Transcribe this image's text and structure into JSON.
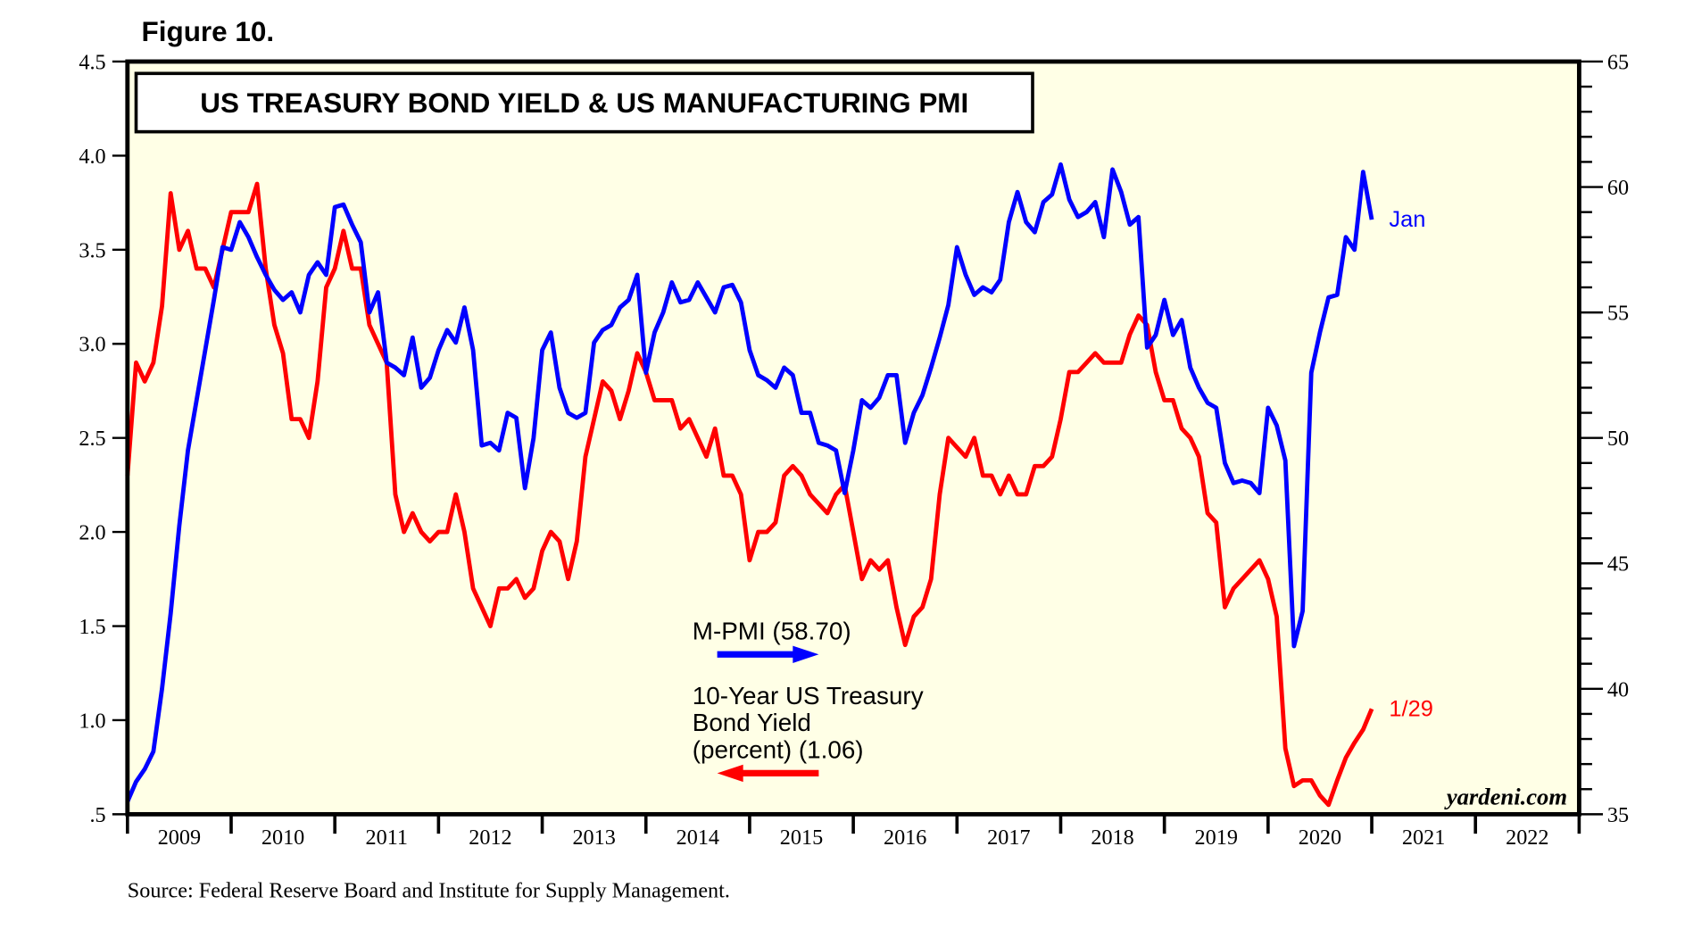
{
  "figure_label": "Figure 10.",
  "source": "Source: Federal Reserve Board and Institute for Supply Management.",
  "watermark": "yardeni.com",
  "colors": {
    "pmi": "#0000FF",
    "yield": "#FF0000",
    "plot_bg": "#FFFFE6"
  },
  "chart_data": {
    "type": "line",
    "title": "US TREASURY BOND YIELD & US MANUFACTURING PMI",
    "x_tick_labels": [
      "2009",
      "2010",
      "2011",
      "2012",
      "2013",
      "2014",
      "2015",
      "2016",
      "2017",
      "2018",
      "2019",
      "2020",
      "2021",
      "2022"
    ],
    "xlim": [
      "2009-01",
      "2022-12"
    ],
    "y_left": {
      "ylim": [
        0.5,
        4.5
      ],
      "tick_labels": [
        ".5",
        "1.0",
        "1.5",
        "2.0",
        "2.5",
        "3.0",
        "3.5",
        "4.0",
        "4.5"
      ]
    },
    "y_right": {
      "ylim": [
        35,
        65
      ],
      "tick_labels": [
        "35",
        "40",
        "45",
        "50",
        "55",
        "60",
        "65"
      ]
    },
    "grid": false,
    "legend_placement": "center-bottom",
    "series": [
      {
        "name": "M-PMI (58.70)",
        "axis": "right",
        "end_label": "Jan",
        "start": "2009-01",
        "frequency": "monthly",
        "values": [
          35.5,
          36.3,
          36.8,
          37.5,
          40.0,
          43.0,
          46.5,
          49.5,
          51.5,
          53.5,
          55.5,
          57.6,
          57.5,
          58.6,
          58.0,
          57.2,
          56.5,
          55.9,
          55.5,
          55.8,
          55.0,
          56.5,
          57.0,
          56.5,
          59.2,
          59.3,
          58.5,
          57.8,
          55.0,
          55.8,
          53.0,
          52.8,
          52.5,
          54.0,
          52.0,
          52.4,
          53.5,
          54.3,
          53.8,
          55.2,
          53.5,
          49.7,
          49.8,
          49.5,
          51.0,
          50.8,
          48.0,
          50.0,
          53.5,
          54.2,
          52.0,
          51.0,
          50.8,
          51.0,
          53.8,
          54.3,
          54.5,
          55.2,
          55.5,
          56.5,
          52.6,
          54.2,
          55.0,
          56.2,
          55.4,
          55.5,
          56.2,
          55.6,
          55.0,
          56.0,
          56.1,
          55.4,
          53.5,
          52.5,
          52.3,
          52.0,
          52.8,
          52.5,
          51.0,
          51.0,
          49.8,
          49.7,
          49.5,
          47.8,
          49.5,
          51.5,
          51.2,
          51.6,
          52.5,
          52.5,
          49.8,
          51.0,
          51.7,
          52.8,
          54.0,
          55.3,
          57.6,
          56.5,
          55.7,
          56.0,
          55.8,
          56.3,
          58.6,
          59.8,
          58.6,
          58.2,
          59.4,
          59.7,
          60.9,
          59.5,
          58.8,
          59.0,
          59.4,
          58.0,
          60.7,
          59.8,
          58.5,
          58.8,
          53.6,
          54.1,
          55.5,
          54.1,
          54.7,
          52.8,
          52.0,
          51.4,
          51.2,
          49.0,
          48.2,
          48.3,
          48.2,
          47.8,
          51.2,
          50.5,
          49.1,
          41.7,
          43.1,
          52.6,
          54.2,
          55.6,
          55.7,
          58.0,
          57.5,
          60.6,
          58.7
        ]
      },
      {
        "name": "10-Year US Treasury Bond Yield (percent) (1.06)",
        "axis": "left",
        "end_label": "1/29",
        "start": "2009-01",
        "frequency": "monthly",
        "values": [
          2.3,
          2.9,
          2.8,
          2.9,
          3.2,
          3.8,
          3.5,
          3.6,
          3.4,
          3.4,
          3.3,
          3.5,
          3.7,
          3.7,
          3.7,
          3.85,
          3.4,
          3.1,
          2.95,
          2.6,
          2.6,
          2.5,
          2.8,
          3.3,
          3.4,
          3.6,
          3.4,
          3.4,
          3.1,
          3.0,
          2.9,
          2.2,
          2.0,
          2.1,
          2.0,
          1.95,
          2.0,
          2.0,
          2.2,
          2.0,
          1.7,
          1.6,
          1.5,
          1.7,
          1.7,
          1.75,
          1.65,
          1.7,
          1.9,
          2.0,
          1.95,
          1.75,
          1.95,
          2.4,
          2.6,
          2.8,
          2.75,
          2.6,
          2.75,
          2.95,
          2.85,
          2.7,
          2.7,
          2.7,
          2.55,
          2.6,
          2.5,
          2.4,
          2.55,
          2.3,
          2.3,
          2.2,
          1.85,
          2.0,
          2.0,
          2.05,
          2.3,
          2.35,
          2.3,
          2.2,
          2.15,
          2.1,
          2.2,
          2.25,
          2.0,
          1.75,
          1.85,
          1.8,
          1.85,
          1.6,
          1.4,
          1.55,
          1.6,
          1.75,
          2.2,
          2.5,
          2.45,
          2.4,
          2.5,
          2.3,
          2.3,
          2.2,
          2.3,
          2.2,
          2.2,
          2.35,
          2.35,
          2.4,
          2.6,
          2.85,
          2.85,
          2.9,
          2.95,
          2.9,
          2.9,
          2.9,
          3.05,
          3.15,
          3.1,
          2.85,
          2.7,
          2.7,
          2.55,
          2.5,
          2.4,
          2.1,
          2.05,
          1.6,
          1.7,
          1.75,
          1.8,
          1.85,
          1.75,
          1.55,
          0.85,
          0.65,
          0.68,
          0.68,
          0.6,
          0.55,
          0.68,
          0.8,
          0.88,
          0.95,
          1.06
        ]
      }
    ],
    "annotations": {
      "pmi_legend": "M-PMI (58.70)",
      "yield_legend_lines": [
        "10-Year US Treasury",
        "Bond Yield",
        "(percent) (1.06)"
      ],
      "pmi_end": "Jan",
      "yield_end": "1/29"
    }
  }
}
